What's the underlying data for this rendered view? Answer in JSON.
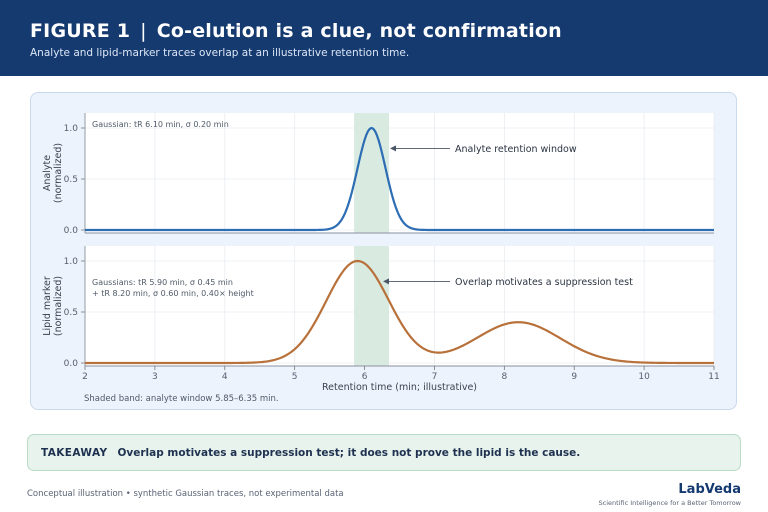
{
  "header": {
    "figure_label": "FIGURE 1",
    "separator": "|",
    "title": "Co-elution is a clue, not confirmation",
    "subtitle": "Analyte and lipid-marker traces overlap at an illustrative retention time."
  },
  "colors": {
    "header_bg": "#153a70",
    "analyte": "#2c6db4",
    "lipid": "#b8713a",
    "band": "#d9ebe0"
  },
  "chart_data": [
    {
      "type": "line",
      "series": [
        {
          "name": "Analyte",
          "model": "gaussian",
          "center": 6.1,
          "sigma": 0.2,
          "height": 1.0
        }
      ],
      "xlim": [
        2,
        11
      ],
      "ylim": [
        0,
        1
      ],
      "yticks": [
        0.0,
        0.5,
        1.0
      ],
      "ytick_labels": [
        "0.0",
        "0.5",
        "1.0"
      ],
      "ylabel": [
        "Analyte",
        "(normalized)"
      ],
      "note": [
        "Gaussian: tR 6.10 min, σ 0.20 min"
      ],
      "band": [
        5.85,
        6.35
      ],
      "annotation": {
        "text": "Analyte retention window",
        "x": 6.35,
        "y": 0.8
      },
      "grid": true
    },
    {
      "type": "line",
      "series": [
        {
          "name": "Lipid marker",
          "model": "gaussian_sum",
          "components": [
            {
              "center": 5.9,
              "sigma": 0.45,
              "height": 1.0
            },
            {
              "center": 8.2,
              "sigma": 0.6,
              "height": 0.4
            }
          ]
        }
      ],
      "xlim": [
        2,
        11
      ],
      "ylim": [
        0,
        1
      ],
      "xticks": [
        2,
        3,
        4,
        5,
        6,
        7,
        8,
        9,
        10,
        11
      ],
      "xtick_labels": [
        "2",
        "3",
        "4",
        "5",
        "6",
        "7",
        "8",
        "9",
        "10",
        "11"
      ],
      "yticks": [
        0.0,
        0.5,
        1.0
      ],
      "ytick_labels": [
        "0.0",
        "0.5",
        "1.0"
      ],
      "ylabel": [
        "Lipid marker",
        "(normalized)"
      ],
      "xlabel": "Retention time (min; illustrative)",
      "note": [
        "Gaussians: tR 5.90 min, σ 0.45 min",
        "+ tR 8.20 min, σ 0.60 min, 0.40× height"
      ],
      "band": [
        5.85,
        6.35
      ],
      "annotation": {
        "text": "Overlap motivates a suppression test",
        "x": 6.25,
        "y": 0.8
      },
      "grid": true
    }
  ],
  "shade_note": "Shaded band: analyte window 5.85–6.35 min.",
  "takeaway": {
    "label": "TAKEAWAY",
    "text": "Overlap motivates a suppression test; it does not prove the lipid is the cause."
  },
  "footer": {
    "note": "Conceptual illustration • synthetic Gaussian traces, not experimental data",
    "brand": "LabVeda",
    "tagline": "Scientific Intelligence for a Better Tomorrow"
  }
}
